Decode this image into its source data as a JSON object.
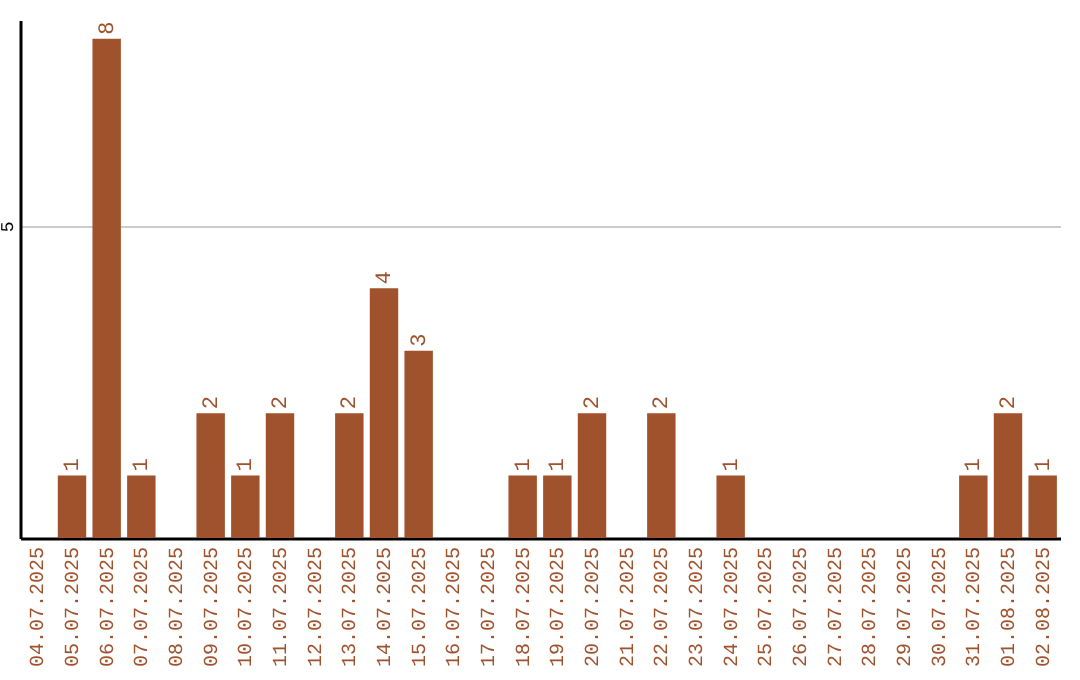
{
  "chart_data": {
    "type": "bar",
    "categories": [
      "04.07.2025",
      "05.07.2025",
      "06.07.2025",
      "07.07.2025",
      "08.07.2025",
      "09.07.2025",
      "10.07.2025",
      "11.07.2025",
      "12.07.2025",
      "13.07.2025",
      "14.07.2025",
      "15.07.2025",
      "16.07.2025",
      "17.07.2025",
      "18.07.2025",
      "19.07.2025",
      "20.07.2025",
      "21.07.2025",
      "22.07.2025",
      "23.07.2025",
      "24.07.2025",
      "25.07.2025",
      "26.07.2025",
      "27.07.2025",
      "28.07.2025",
      "29.07.2025",
      "30.07.2025",
      "31.07.2025",
      "01.08.2025",
      "02.08.2025"
    ],
    "values": [
      0,
      1,
      8,
      1,
      0,
      2,
      1,
      2,
      0,
      2,
      4,
      3,
      0,
      0,
      1,
      1,
      2,
      0,
      2,
      0,
      1,
      0,
      0,
      0,
      0,
      0,
      0,
      1,
      2,
      1
    ],
    "value_labels": [
      null,
      "1",
      "8",
      "1",
      null,
      "2",
      "1",
      "2",
      null,
      "2",
      "4",
      "3",
      null,
      null,
      "1",
      "1",
      "2",
      null,
      "2",
      null,
      "1",
      null,
      null,
      null,
      null,
      null,
      null,
      "1",
      "2",
      "1"
    ],
    "color": "#a0522d",
    "ylim": [
      0,
      8.3
    ],
    "yticks": [
      5
    ],
    "grid": "y"
  }
}
